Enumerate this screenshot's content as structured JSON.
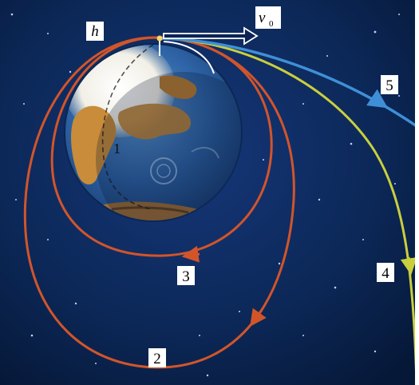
{
  "figure": {
    "labels": {
      "height": "h",
      "velocity": "v",
      "velocity_subscript": "0",
      "orbit_1": "1",
      "orbit_2": "2",
      "orbit_3": "3",
      "trajectory_4": "4",
      "trajectory_5": "5"
    },
    "colors": {
      "space": "#0b2453",
      "space_edge": "#06173a",
      "orbit_red": "#d2552a",
      "trajectory_4": "#c9cf3d",
      "trajectory_5": "#3f8fd8",
      "ocean": "#2f69ad",
      "land": "#c98c3a",
      "ice": "#f4f2ea",
      "label_bg": "#ffffff"
    },
    "icons": [
      "earth-globe",
      "velocity-arrow",
      "launch-point",
      "star-field"
    ]
  }
}
